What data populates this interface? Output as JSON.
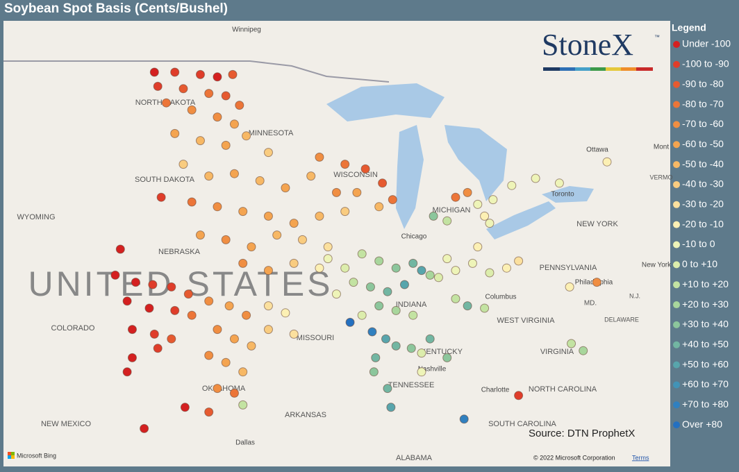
{
  "title": "Soybean Spot Basis (Cents/Bushel)",
  "logo": {
    "name": "StoneX",
    "mark": "™"
  },
  "legend": {
    "title": "Legend",
    "items": [
      {
        "label": "Under -100",
        "color": "#d42020"
      },
      {
        "label": "-100 to -90",
        "color": "#df3d2a"
      },
      {
        "label": "-90 to -80",
        "color": "#e65a30"
      },
      {
        "label": "-80 to -70",
        "color": "#ec7538"
      },
      {
        "label": "-70 to -60",
        "color": "#f08e42"
      },
      {
        "label": "-60 to -50",
        "color": "#f4a450"
      },
      {
        "label": "-50 to -40",
        "color": "#f7b865"
      },
      {
        "label": "-40 to -30",
        "color": "#f9cc80"
      },
      {
        "label": "-30 to -20",
        "color": "#fbe09e"
      },
      {
        "label": "-20 to -10",
        "color": "#fcf0b4"
      },
      {
        "label": "-10 to 0",
        "color": "#eef4b8"
      },
      {
        "label": "0 to +10",
        "color": "#dcedac"
      },
      {
        "label": "+10 to +20",
        "color": "#c3e3a2"
      },
      {
        "label": "+20 to +30",
        "color": "#a8d69c"
      },
      {
        "label": "+30 to +40",
        "color": "#8cc69c"
      },
      {
        "label": "+40 to +50",
        "color": "#72b6a2"
      },
      {
        "label": "+50 to +60",
        "color": "#58a5ac"
      },
      {
        "label": "+60 to +70",
        "color": "#4293b6"
      },
      {
        "label": "+70 to +80",
        "color": "#3080bf"
      },
      {
        "label": "Over +80",
        "color": "#2470c0"
      }
    ]
  },
  "map_labels": [
    "Winnipeg",
    "NORTH DAKOTA",
    "MINNESOTA",
    "SOUTH DAKOTA",
    "WYOMING",
    "NEBRASKA",
    "UNITED STATES",
    "COLORADO",
    "MISSOURI",
    "OKLAHOMA",
    "NEW MEXICO",
    "ARKANSAS",
    "Dallas",
    "ALABAMA",
    "TENNESSEE",
    "Nashville",
    "KENTUCKY",
    "WEST VIRGINIA",
    "VIRGINIA",
    "NORTH CAROLINA",
    "SOUTH CAROLINA",
    "Charlotte",
    "Columbus",
    "Chicago",
    "MICHIGAN",
    "WISCONSIN",
    "Toronto",
    "Ottawa",
    "Mont",
    "NEW YORK",
    "New York",
    "PENNSYLVANIA",
    "Philadelphia",
    "DELAWARE",
    "MD.",
    "N.J.",
    "VERMO",
    "INDIANA"
  ],
  "source": "Source: DTN ProphetX",
  "bing": "Microsoft Bing",
  "copyright": "© 2022 Microsoft Corporation",
  "terms": "Terms",
  "points": [
    [
      -102.2,
      48.9,
      0
    ],
    [
      -101.0,
      48.9,
      1
    ],
    [
      -99.5,
      48.8,
      1
    ],
    [
      -98.5,
      48.7,
      0
    ],
    [
      -97.6,
      48.8,
      2
    ],
    [
      -102.0,
      48.3,
      1
    ],
    [
      -100.5,
      48.2,
      2
    ],
    [
      -99.0,
      48.0,
      3
    ],
    [
      -98.0,
      47.9,
      2
    ],
    [
      -97.2,
      47.5,
      3
    ],
    [
      -101.5,
      47.6,
      3
    ],
    [
      -100.0,
      47.3,
      4
    ],
    [
      -98.5,
      47.0,
      4
    ],
    [
      -97.5,
      46.7,
      5
    ],
    [
      -101.0,
      46.3,
      5
    ],
    [
      -99.5,
      46.0,
      6
    ],
    [
      -98.0,
      45.8,
      5
    ],
    [
      -96.8,
      46.2,
      6
    ],
    [
      -95.5,
      45.5,
      7
    ],
    [
      -100.5,
      45.0,
      7
    ],
    [
      -99.0,
      44.5,
      6
    ],
    [
      -97.5,
      44.6,
      5
    ],
    [
      -96.0,
      44.3,
      6
    ],
    [
      -94.5,
      44.0,
      5
    ],
    [
      -93.0,
      44.5,
      6
    ],
    [
      -101.8,
      43.6,
      1
    ],
    [
      -100.0,
      43.4,
      3
    ],
    [
      -98.5,
      43.2,
      4
    ],
    [
      -97.0,
      43.0,
      5
    ],
    [
      -95.5,
      42.8,
      5
    ],
    [
      -94.0,
      42.5,
      5
    ],
    [
      -92.5,
      42.8,
      6
    ],
    [
      -91.0,
      43.0,
      7
    ],
    [
      -92.5,
      45.3,
      4
    ],
    [
      -91.0,
      45.0,
      3
    ],
    [
      -89.8,
      44.8,
      2
    ],
    [
      -88.8,
      44.2,
      2
    ],
    [
      -88.2,
      43.5,
      3
    ],
    [
      -90.3,
      43.8,
      5
    ],
    [
      -89.0,
      43.2,
      6
    ],
    [
      -91.5,
      43.8,
      4
    ],
    [
      -99.5,
      42.0,
      5
    ],
    [
      -98.0,
      41.8,
      4
    ],
    [
      -96.5,
      41.5,
      5
    ],
    [
      -95.0,
      42.0,
      6
    ],
    [
      -93.5,
      41.8,
      7
    ],
    [
      -92.0,
      41.5,
      8
    ],
    [
      -97.0,
      40.8,
      4
    ],
    [
      -95.5,
      40.5,
      5
    ],
    [
      -94.0,
      40.8,
      7
    ],
    [
      -92.5,
      40.6,
      9
    ],
    [
      -104.5,
      40.3,
      0
    ],
    [
      -103.3,
      40.0,
      0
    ],
    [
      -102.3,
      39.9,
      1
    ],
    [
      -101.2,
      39.8,
      1
    ],
    [
      -100.2,
      39.5,
      2
    ],
    [
      -103.8,
      39.2,
      0
    ],
    [
      -102.5,
      38.9,
      0
    ],
    [
      -101.0,
      38.8,
      1
    ],
    [
      -100.0,
      38.6,
      3
    ],
    [
      -103.5,
      38.0,
      0
    ],
    [
      -102.2,
      37.8,
      1
    ],
    [
      -101.2,
      37.6,
      2
    ],
    [
      -103.5,
      36.8,
      0
    ],
    [
      -102.0,
      37.2,
      1
    ],
    [
      -104.2,
      41.4,
      0
    ],
    [
      -103.8,
      36.2,
      0
    ],
    [
      -99.0,
      39.2,
      4
    ],
    [
      -97.8,
      39.0,
      5
    ],
    [
      -96.8,
      38.6,
      4
    ],
    [
      -98.5,
      38.0,
      4
    ],
    [
      -97.5,
      37.6,
      5
    ],
    [
      -96.5,
      37.3,
      6
    ],
    [
      -99.0,
      36.9,
      4
    ],
    [
      -98.0,
      36.6,
      5
    ],
    [
      -97.0,
      36.2,
      6
    ],
    [
      -98.5,
      35.5,
      4
    ],
    [
      -97.5,
      35.3,
      3
    ],
    [
      -100.4,
      34.7,
      0
    ],
    [
      -99.0,
      34.5,
      2
    ],
    [
      -97.0,
      34.8,
      12
    ],
    [
      -102.8,
      33.8,
      0
    ],
    [
      -95.5,
      39.0,
      8
    ],
    [
      -94.5,
      38.7,
      9
    ],
    [
      -95.5,
      38.0,
      7
    ],
    [
      -94.0,
      37.8,
      8
    ],
    [
      -92.0,
      41.0,
      10
    ],
    [
      -91.0,
      40.6,
      11
    ],
    [
      -90.0,
      41.2,
      12
    ],
    [
      -89.0,
      40.9,
      13
    ],
    [
      -88.0,
      40.6,
      14
    ],
    [
      -87.0,
      40.8,
      15
    ],
    [
      -86.0,
      40.3,
      13
    ],
    [
      -90.5,
      40.0,
      12
    ],
    [
      -89.5,
      39.8,
      14
    ],
    [
      -88.5,
      39.6,
      15
    ],
    [
      -87.5,
      39.9,
      16
    ],
    [
      -86.5,
      40.5,
      16
    ],
    [
      -89.0,
      39.0,
      14
    ],
    [
      -88.0,
      38.8,
      13
    ],
    [
      -87.0,
      38.6,
      12
    ],
    [
      -90.0,
      38.6,
      11
    ],
    [
      -91.5,
      39.5,
      10
    ],
    [
      -89.4,
      37.9,
      18
    ],
    [
      -88.6,
      37.6,
      16
    ],
    [
      -88.0,
      37.3,
      15
    ],
    [
      -89.2,
      36.8,
      15
    ],
    [
      -89.3,
      36.2,
      14
    ],
    [
      -87.1,
      37.2,
      14
    ],
    [
      -86.5,
      37.0,
      11
    ],
    [
      -85.5,
      40.2,
      11
    ],
    [
      -84.5,
      40.5,
      10
    ],
    [
      -83.5,
      40.8,
      10
    ],
    [
      -82.5,
      40.4,
      11
    ],
    [
      -81.5,
      40.6,
      9
    ],
    [
      -84.5,
      39.3,
      12
    ],
    [
      -83.8,
      39.0,
      15
    ],
    [
      -82.8,
      38.9,
      12
    ],
    [
      -80.8,
      40.9,
      8
    ],
    [
      -85.0,
      41.0,
      10
    ],
    [
      -83.2,
      41.5,
      9
    ],
    [
      -85.8,
      42.8,
      14
    ],
    [
      -85.0,
      42.6,
      12
    ],
    [
      -84.5,
      43.6,
      3
    ],
    [
      -83.8,
      43.8,
      4
    ],
    [
      -83.2,
      43.3,
      10
    ],
    [
      -82.8,
      42.8,
      9
    ],
    [
      -82.3,
      43.5,
      10
    ],
    [
      -81.2,
      44.1,
      10
    ],
    [
      -79.8,
      44.4,
      10
    ],
    [
      -78.4,
      44.2,
      10
    ],
    [
      -82.5,
      42.5,
      10
    ],
    [
      -75.6,
      45.1,
      9
    ],
    [
      -76.2,
      40.0,
      4
    ],
    [
      -77.8,
      39.8,
      9
    ],
    [
      -80.8,
      35.2,
      1
    ],
    [
      -77.7,
      37.4,
      12
    ],
    [
      -77.0,
      37.1,
      13
    ],
    [
      -84.0,
      34.2,
      18
    ],
    [
      -85.0,
      36.8,
      14
    ],
    [
      -86.0,
      37.6,
      15
    ],
    [
      -88.3,
      34.7,
      16
    ],
    [
      -88.5,
      35.5,
      15
    ],
    [
      -86.5,
      36.2,
      10
    ],
    [
      -90.7,
      38.3,
      19
    ]
  ]
}
